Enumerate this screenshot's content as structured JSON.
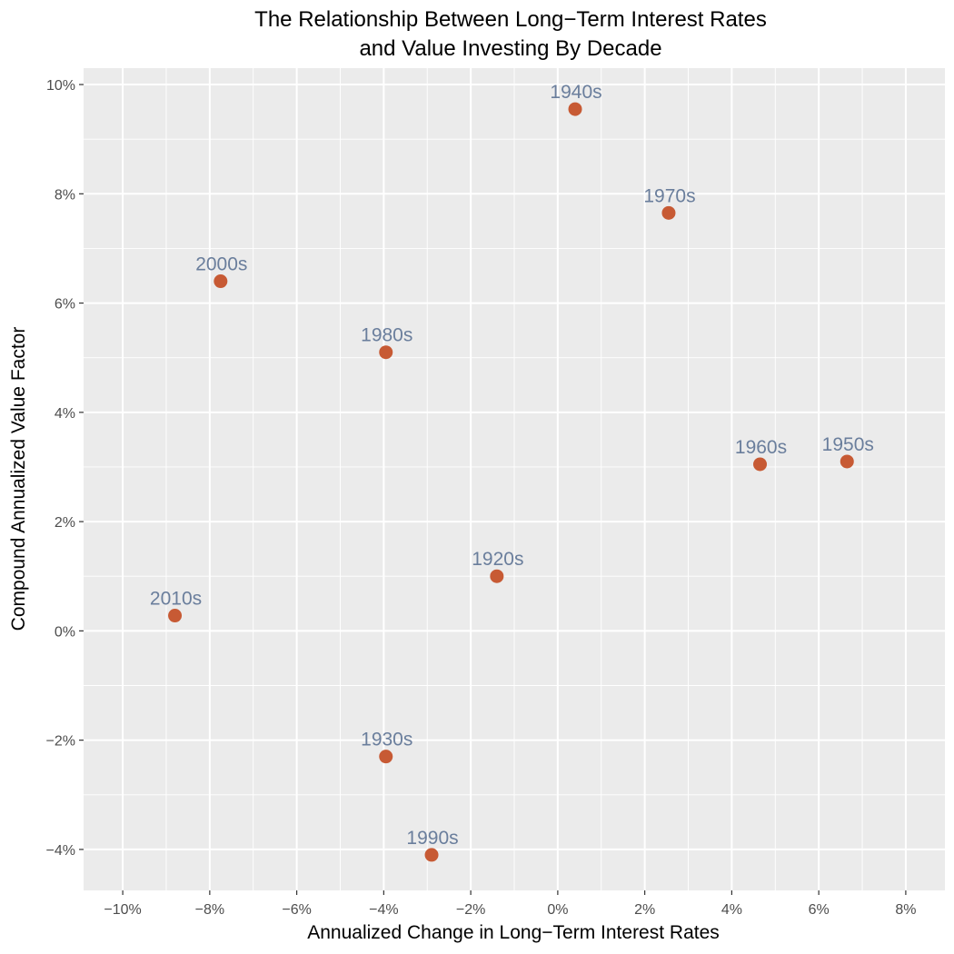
{
  "chart_data": {
    "type": "scatter",
    "title": "The Relationship Between Long−Term Interest Rates",
    "subtitle": "and Value Investing By Decade",
    "xlabel": "Annualized Change in Long−Term Interest Rates",
    "ylabel": "Compound Annualized Value Factor",
    "xlim": [
      -10.9,
      8.9
    ],
    "ylim": [
      -4.75,
      10.3
    ],
    "x_ticks": [
      -10,
      -8,
      -6,
      -4,
      -2,
      0,
      2,
      4,
      6,
      8
    ],
    "x_tick_labels": [
      "−10%",
      "−8%",
      "−6%",
      "−4%",
      "−2%",
      "0%",
      "2%",
      "4%",
      "6%",
      "8%"
    ],
    "y_ticks": [
      -4,
      -2,
      0,
      2,
      4,
      6,
      8,
      10
    ],
    "y_tick_labels": [
      "−4%",
      "−2%",
      "0%",
      "2%",
      "4%",
      "6%",
      "8%",
      "10%"
    ],
    "grid": true,
    "legend": "none",
    "colors": {
      "point": "#c75a34",
      "label": "#6a7e9c",
      "panel": "#ebebeb",
      "grid": "#ffffff"
    },
    "points": [
      {
        "label": "1920s",
        "x": -1.4,
        "y": 1.0
      },
      {
        "label": "1930s",
        "x": -3.95,
        "y": -2.3
      },
      {
        "label": "1940s",
        "x": 0.4,
        "y": 9.55
      },
      {
        "label": "1950s",
        "x": 6.65,
        "y": 3.1
      },
      {
        "label": "1960s",
        "x": 4.65,
        "y": 3.05
      },
      {
        "label": "1970s",
        "x": 2.55,
        "y": 7.65
      },
      {
        "label": "1980s",
        "x": -3.95,
        "y": 5.1
      },
      {
        "label": "1990s",
        "x": -2.9,
        "y": -4.1
      },
      {
        "label": "2000s",
        "x": -7.75,
        "y": 6.4
      },
      {
        "label": "2010s",
        "x": -8.8,
        "y": 0.28
      }
    ]
  }
}
